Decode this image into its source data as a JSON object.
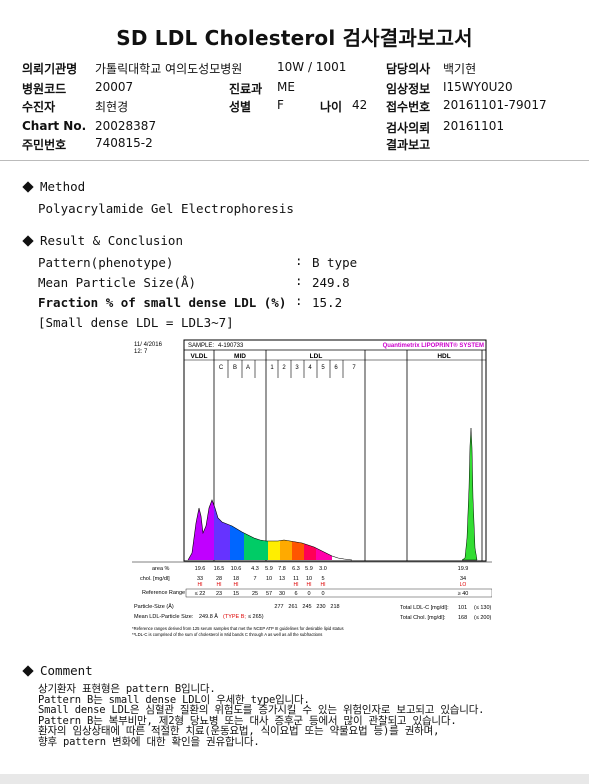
{
  "title": "SD LDL Cholesterol 검사결과보고서",
  "header": {
    "institution_label": "의뢰기관명",
    "institution_value": "가톨릭대학교 여의도성모병원",
    "ward_value": "10W / 1001",
    "doctor_label": "담당의사",
    "doctor_value": "백기현",
    "hospital_code_label": "병원코드",
    "hospital_code_value": "20007",
    "dept_label": "진료과",
    "dept_value": "ME",
    "clinical_label": "임상정보",
    "clinical_value": "I15WY0U20",
    "patient_label": "수진자",
    "patient_value": "최현경",
    "sex_label": "성별",
    "sex_value": "F",
    "age_label": "나이",
    "age_value": "42",
    "receipt_label": "접수번호",
    "receipt_value": "20161101-79017",
    "chart_label": "Chart No.",
    "chart_value": "20028387",
    "request_label": "검사의뢰",
    "request_value": "20161101",
    "id_label": "주민번호",
    "id_value": "740815-2",
    "report_label": "결과보고"
  },
  "method": {
    "heading": "Method",
    "text": "Polyacrylamide Gel Electrophoresis"
  },
  "result": {
    "heading": "Result & Conclusion",
    "pattern_label": "Pattern(phenotype)",
    "pattern_value": "B type",
    "size_label": "Mean Particle Size(Å)",
    "size_value": "249.8",
    "fraction_label": "Fraction % of small dense LDL (%)",
    "fraction_value": "15.2",
    "note": "[Small dense LDL = LDL3~7]",
    "colon": ":"
  },
  "chart_data": {
    "type": "area",
    "header": {
      "date": "11/ 4/2016",
      "time": "12: 7",
      "sample_label": "SAMPLE:",
      "sample_value": "4-190733",
      "brand": "Quantimetrix LIPOPRINT® SYSTEM"
    },
    "bands": [
      "VLDL",
      "MID",
      "LDL",
      "HDL"
    ],
    "mid_subbands": [
      "C",
      "B",
      "A"
    ],
    "ldl_subbands": [
      "1",
      "2",
      "3",
      "4",
      "5",
      "6",
      "7"
    ],
    "row_labels": {
      "area": "area %",
      "chol": "chol. [mg/dl]",
      "ref": "Reference Range",
      "size": "Particle-Size (Å)",
      "mean": "Mean LDL-Particle Size:"
    },
    "area_pct": [
      "19.6",
      "16.5",
      "10.6",
      "4.3",
      "5.9",
      "7.8",
      "6.3",
      "5.9",
      "3.0",
      "",
      "19.9"
    ],
    "chol": [
      "33",
      "28",
      "18",
      "7",
      "10",
      "13",
      "11",
      "10",
      "5",
      "",
      "34"
    ],
    "flags": [
      "HI",
      "HI",
      "HI",
      "",
      "",
      "",
      "HI",
      "HI",
      "HI",
      "",
      "LO"
    ],
    "ref_range": [
      "≤ 22",
      "23",
      "15",
      "25",
      "57",
      "30",
      "6",
      "0",
      "0",
      "",
      "≥ 40"
    ],
    "particle_size": [
      "277",
      "261",
      "245",
      "230",
      "218"
    ],
    "mean_size": "249.8 Å",
    "mean_type": "TYPE B",
    "mean_ref": "≤ 265",
    "total_ldl_label": "Total LDL-C [mg/dl]:",
    "total_ldl_value": "101",
    "total_ldl_ref": "(≤ 130)",
    "total_chol_label": "Total Chol. [mg/dl]:",
    "total_chol_value": "168",
    "total_chol_ref": "(≤ 200)",
    "footnote1": "*Reference ranges derived from 125 serum samples that met the NCEP ATP III guidelines for desirable lipid status",
    "footnote2": "**LDL-C is comprised of the sum of cholesterol in Mid bands C through A as well as all the subfractions",
    "colors": {
      "vldl": "#c000ff",
      "mid_c": "#6633ff",
      "mid_b": "#0066ff",
      "mid_a": "#00cc66",
      "ldl1": "#ffee00",
      "ldl2": "#ffaa00",
      "ldl3": "#ff5500",
      "ldl4": "#ff0055",
      "ldl5": "#ff00aa",
      "hdl": "#33dd33"
    }
  },
  "comment": {
    "heading": "Comment",
    "lines": [
      "상기환자 표현형은 pattern B입니다.",
      "Pattern B는 small dense LDL이 우세한 type입니다.",
      "Small dense LDL은 심혈관 질환의 위험도를 증가시킬 수 있는 위험인자로 보고되고 있습니다.",
      "Pattern B는 복부비만, 제2형 당뇨병 또는 대사 증후군 등에서 많이 관찰되고 있습니다.",
      "환자의 임상상태에 따른 적절한 치료(운동요법, 식이요법 또는 약물요법 등)를 권하며,",
      "향후 pattern 변화에 대한 확인을 권유합니다."
    ]
  }
}
